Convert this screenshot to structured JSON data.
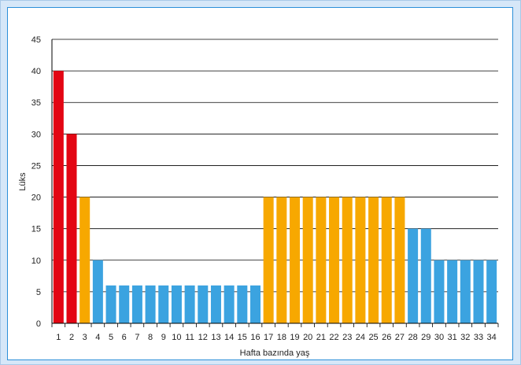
{
  "chart_data": {
    "type": "bar",
    "xlabel": "Hafta bazında yaş",
    "ylabel": "Lüks",
    "ylim": [
      0,
      45
    ],
    "yticks": [
      0,
      5,
      10,
      15,
      20,
      25,
      30,
      35,
      40,
      45
    ],
    "grid": true,
    "categories": [
      "1",
      "2",
      "3",
      "4",
      "5",
      "6",
      "7",
      "8",
      "9",
      "10",
      "11",
      "12",
      "13",
      "14",
      "15",
      "16",
      "17",
      "18",
      "19",
      "20",
      "21",
      "22",
      "23",
      "24",
      "25",
      "26",
      "27",
      "28",
      "29",
      "30",
      "31",
      "32",
      "33",
      "34"
    ],
    "values": [
      40,
      30,
      20,
      10,
      6,
      6,
      6,
      6,
      6,
      6,
      6,
      6,
      6,
      6,
      6,
      6,
      20,
      20,
      20,
      20,
      20,
      20,
      20,
      20,
      20,
      20,
      20,
      15,
      15,
      10,
      10,
      10,
      10,
      10
    ],
    "bar_colors": [
      "#e30613",
      "#e30613",
      "#f7a800",
      "#3ba3e0",
      "#3ba3e0",
      "#3ba3e0",
      "#3ba3e0",
      "#3ba3e0",
      "#3ba3e0",
      "#3ba3e0",
      "#3ba3e0",
      "#3ba3e0",
      "#3ba3e0",
      "#3ba3e0",
      "#3ba3e0",
      "#3ba3e0",
      "#f7a800",
      "#f7a800",
      "#f7a800",
      "#f7a800",
      "#f7a800",
      "#f7a800",
      "#f7a800",
      "#f7a800",
      "#f7a800",
      "#f7a800",
      "#f7a800",
      "#3ba3e0",
      "#3ba3e0",
      "#3ba3e0",
      "#3ba3e0",
      "#3ba3e0",
      "#3ba3e0",
      "#3ba3e0"
    ]
  },
  "colors": {
    "frame_bg": "#d6e7f8",
    "panel_border": "#2b8fd8",
    "red": "#e30613",
    "orange": "#f7a800",
    "blue": "#3ba3e0"
  }
}
